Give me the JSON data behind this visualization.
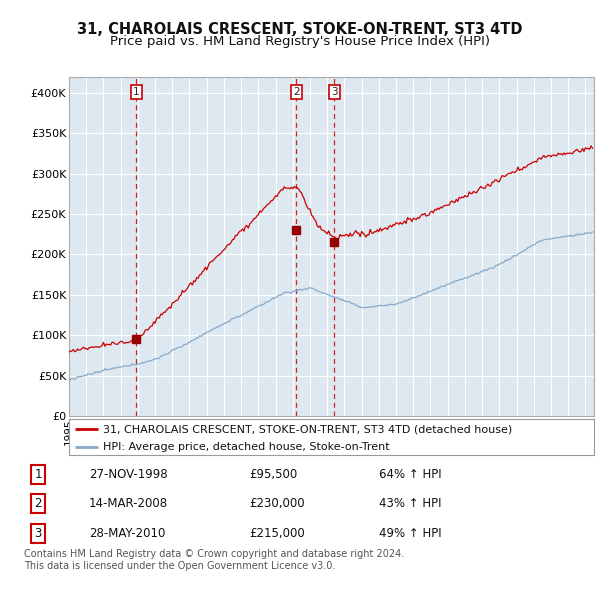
{
  "title": "31, CHAROLAIS CRESCENT, STOKE-ON-TRENT, ST3 4TD",
  "subtitle": "Price paid vs. HM Land Registry's House Price Index (HPI)",
  "xlim_start": 1995.0,
  "xlim_end": 2025.5,
  "ylim": [
    0,
    420000
  ],
  "yticks": [
    0,
    50000,
    100000,
    150000,
    200000,
    250000,
    300000,
    350000,
    400000
  ],
  "ytick_labels": [
    "£0",
    "£50K",
    "£100K",
    "£150K",
    "£200K",
    "£250K",
    "£300K",
    "£350K",
    "£400K"
  ],
  "sale_dates": [
    1998.91,
    2008.21,
    2010.41
  ],
  "sale_prices": [
    95500,
    230000,
    215000
  ],
  "sale_labels": [
    "1",
    "2",
    "3"
  ],
  "vline_color": "#cc0000",
  "red_line_color": "#cc0000",
  "blue_line_color": "#88aacc",
  "plot_bg_color": "#dde8f0",
  "legend_red_label": "31, CHAROLAIS CRESCENT, STOKE-ON-TRENT, ST3 4TD (detached house)",
  "legend_blue_label": "HPI: Average price, detached house, Stoke-on-Trent",
  "table_rows": [
    [
      "1",
      "27-NOV-1998",
      "£95,500",
      "64% ↑ HPI"
    ],
    [
      "2",
      "14-MAR-2008",
      "£230,000",
      "43% ↑ HPI"
    ],
    [
      "3",
      "28-MAY-2010",
      "£215,000",
      "49% ↑ HPI"
    ]
  ],
  "footnote1": "Contains HM Land Registry data © Crown copyright and database right 2024.",
  "footnote2": "This data is licensed under the Open Government Licence v3.0.",
  "bg_color": "#ffffff",
  "grid_color": "#ffffff",
  "title_fontsize": 10.5,
  "subtitle_fontsize": 9.5,
  "tick_fontsize": 8,
  "legend_fontsize": 8,
  "table_fontsize": 8.5,
  "footnote_fontsize": 7
}
